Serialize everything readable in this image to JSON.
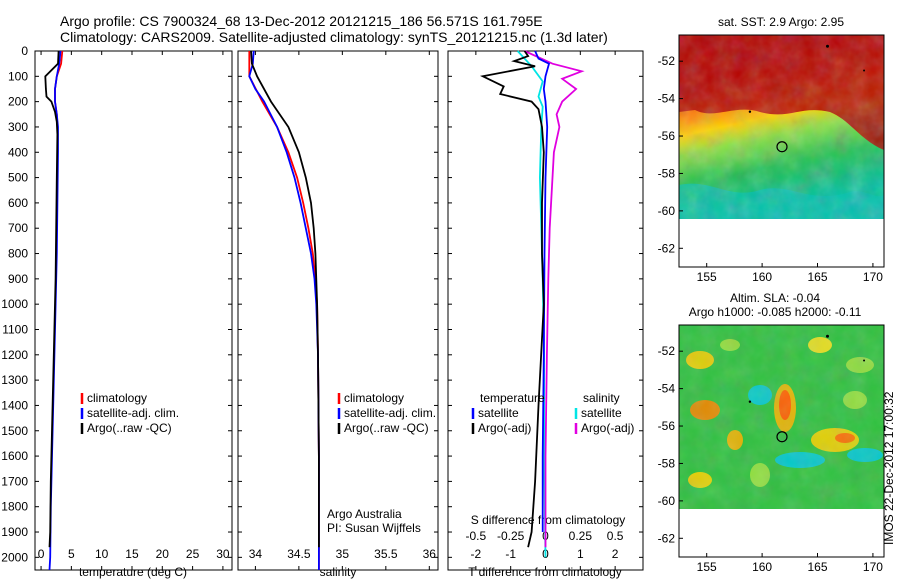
{
  "title": {
    "line1": "Argo profile: CS 7900324_68 13-Dec-2012 20121215_186 56.571S 161.795E",
    "line2": "Climatology: CARS2009. Satellite-adjusted climatology: synTS_20121215.nc (1.3d later)"
  },
  "colors": {
    "climatology": "#ff0000",
    "satellite": "#0000ff",
    "argo": "#000000",
    "sal_satellite": "#00e5e5",
    "sal_argo": "#e000e0"
  },
  "panels": {
    "temperature": {
      "xlabel": "temperature (deg C)",
      "xticks": [
        "0",
        "5",
        "10",
        "15",
        "20",
        "25",
        "30"
      ]
    },
    "salinity": {
      "xlabel": "salinity",
      "xticks": [
        "34",
        "34.5",
        "35",
        "35.5",
        "36"
      ]
    },
    "difference": {
      "xlabel": "T difference from climatology",
      "top_label": "S difference from climatology",
      "xticks_T": [
        "-2",
        "-1",
        "0",
        "1",
        "2"
      ],
      "xticks_S": [
        "-0.5",
        "-0.25",
        "0",
        "0.25",
        "0.5"
      ]
    }
  },
  "legend_main": [
    "climatology",
    "satellite-adj. clim.",
    "Argo(..raw -QC)"
  ],
  "legend_diff": {
    "temp_head": "temperature",
    "sal_head": "salinity",
    "items": [
      "satellite",
      "Argo(-adj)"
    ]
  },
  "credit": {
    "line1": "Argo Australia",
    "line2": "PI: Susan Wijffels"
  },
  "maps": {
    "sst": {
      "title": "sat. SST: 2.9 Argo: 2.95"
    },
    "sla": {
      "title1": "Altim. SLA: -0.04",
      "title2": "Argo h1000: -0.085 h2000: -0.11"
    },
    "yticks": [
      "-52",
      "-54",
      "-56",
      "-58",
      "-60",
      "-62"
    ],
    "xticks": [
      "155",
      "160",
      "165",
      "170"
    ]
  },
  "stamp": "IMOS 22-Dec-2012 17:00:32",
  "chart_data": {
    "type": "line",
    "depth_ticks": [
      0,
      100,
      200,
      300,
      400,
      500,
      600,
      700,
      800,
      900,
      1000,
      1100,
      1200,
      1300,
      1400,
      1500,
      1600,
      1700,
      1800,
      1900,
      2000
    ],
    "depth_range": [
      0,
      2050
    ],
    "temperature": {
      "xlim": [
        -1,
        31.5
      ],
      "climatology": [
        [
          3.5,
          0
        ],
        [
          3.3,
          50
        ],
        [
          2.6,
          100
        ],
        [
          2.3,
          150
        ],
        [
          2.3,
          200
        ],
        [
          2.6,
          250
        ],
        [
          2.7,
          300
        ],
        [
          2.7,
          400
        ]
      ],
      "satellite": [
        [
          3.2,
          0
        ],
        [
          3.0,
          50
        ],
        [
          2.6,
          100
        ],
        [
          2.3,
          150
        ],
        [
          2.3,
          200
        ],
        [
          2.6,
          250
        ],
        [
          2.8,
          300
        ],
        [
          2.8,
          400
        ],
        [
          2.7,
          600
        ],
        [
          2.6,
          800
        ],
        [
          2.4,
          1000
        ],
        [
          2.2,
          1200
        ],
        [
          2.0,
          1400
        ],
        [
          1.8,
          1600
        ],
        [
          1.6,
          1800
        ],
        [
          1.5,
          2000
        ],
        [
          1.4,
          2050
        ]
      ],
      "argo": [
        [
          2.9,
          0
        ],
        [
          2.8,
          50
        ],
        [
          0.7,
          100
        ],
        [
          0.8,
          150
        ],
        [
          0.9,
          180
        ],
        [
          1.7,
          200
        ],
        [
          2.3,
          240
        ],
        [
          2.6,
          280
        ],
        [
          2.7,
          330
        ],
        [
          2.6,
          500
        ],
        [
          2.5,
          700
        ],
        [
          2.4,
          900
        ],
        [
          2.2,
          1100
        ],
        [
          2.0,
          1300
        ],
        [
          1.8,
          1500
        ],
        [
          1.6,
          1700
        ],
        [
          1.5,
          1900
        ],
        [
          1.4,
          1960
        ]
      ]
    },
    "salinity": {
      "xlim": [
        33.8,
        36.1
      ],
      "climatology": [
        [
          33.93,
          0
        ],
        [
          33.93,
          100
        ],
        [
          34.08,
          200
        ],
        [
          34.25,
          300
        ],
        [
          34.38,
          400
        ],
        [
          34.48,
          500
        ],
        [
          34.55,
          600
        ],
        [
          34.61,
          700
        ],
        [
          34.66,
          800
        ],
        [
          34.69,
          900
        ],
        [
          34.71,
          1000
        ],
        [
          34.72,
          1200
        ],
        [
          34.73,
          1600
        ],
        [
          34.73,
          2050
        ]
      ],
      "satellite": [
        [
          33.98,
          0
        ],
        [
          33.97,
          50
        ],
        [
          33.93,
          100
        ],
        [
          34.0,
          150
        ],
        [
          34.1,
          200
        ],
        [
          34.25,
          300
        ],
        [
          34.36,
          400
        ],
        [
          34.45,
          500
        ],
        [
          34.52,
          600
        ],
        [
          34.58,
          700
        ],
        [
          34.64,
          800
        ],
        [
          34.68,
          900
        ],
        [
          34.7,
          1000
        ],
        [
          34.72,
          1200
        ],
        [
          34.73,
          1600
        ],
        [
          34.73,
          2050
        ]
      ],
      "argo": [
        [
          33.95,
          0
        ],
        [
          33.96,
          50
        ],
        [
          34.02,
          100
        ],
        [
          34.18,
          200
        ],
        [
          34.38,
          300
        ],
        [
          34.5,
          400
        ],
        [
          34.58,
          500
        ],
        [
          34.64,
          600
        ],
        [
          34.67,
          700
        ],
        [
          34.69,
          800
        ],
        [
          34.71,
          1000
        ],
        [
          34.72,
          1200
        ],
        [
          34.73,
          1600
        ],
        [
          34.73,
          1960
        ]
      ]
    },
    "t_difference": {
      "xlim": [
        -2.8,
        2.8
      ],
      "satellite": [
        [
          -0.3,
          0
        ],
        [
          -0.2,
          30
        ],
        [
          0.1,
          50
        ],
        [
          0.0,
          100
        ],
        [
          -0.05,
          150
        ],
        [
          0.0,
          200
        ],
        [
          0.05,
          300
        ],
        [
          0.0,
          500
        ],
        [
          -0.03,
          800
        ],
        [
          -0.05,
          1200
        ],
        [
          -0.08,
          1600
        ],
        [
          -0.08,
          1900
        ]
      ],
      "argo": [
        [
          -0.6,
          0
        ],
        [
          -0.5,
          20
        ],
        [
          -0.9,
          40
        ],
        [
          -0.3,
          60
        ],
        [
          -1.8,
          100
        ],
        [
          -1.2,
          140
        ],
        [
          -1.3,
          170
        ],
        [
          -0.4,
          200
        ],
        [
          -0.2,
          230
        ],
        [
          -0.1,
          300
        ],
        [
          -0.05,
          400
        ],
        [
          -0.1,
          600
        ],
        [
          -0.1,
          800
        ],
        [
          -0.05,
          1000
        ],
        [
          -0.2,
          1400
        ],
        [
          -0.3,
          1700
        ],
        [
          -0.4,
          1900
        ],
        [
          -0.5,
          1960
        ]
      ]
    },
    "s_difference": {
      "xlim": [
        -0.7,
        0.7
      ],
      "satellite": [
        [
          -0.2,
          0
        ],
        [
          -0.1,
          60
        ],
        [
          -0.02,
          120
        ],
        [
          -0.05,
          180
        ],
        [
          -0.02,
          220
        ],
        [
          -0.03,
          300
        ],
        [
          -0.04,
          500
        ],
        [
          -0.03,
          700
        ],
        [
          -0.02,
          900
        ],
        [
          -0.01,
          1200
        ],
        [
          -0.01,
          1600
        ],
        [
          0.0,
          2000
        ]
      ],
      "argo": [
        [
          -0.15,
          0
        ],
        [
          0.05,
          50
        ],
        [
          0.26,
          80
        ],
        [
          0.12,
          110
        ],
        [
          0.22,
          150
        ],
        [
          0.12,
          200
        ],
        [
          0.08,
          250
        ],
        [
          0.1,
          300
        ],
        [
          0.06,
          400
        ],
        [
          0.05,
          500
        ],
        [
          0.03,
          700
        ],
        [
          0.02,
          900
        ],
        [
          0.01,
          1200
        ],
        [
          0.0,
          1600
        ],
        [
          0.0,
          1960
        ]
      ]
    },
    "map_lon_range": [
      152.5,
      171
    ],
    "map_lat_range": [
      -63,
      -50.6
    ],
    "profile_location": [
      161.795,
      -56.571
    ]
  }
}
